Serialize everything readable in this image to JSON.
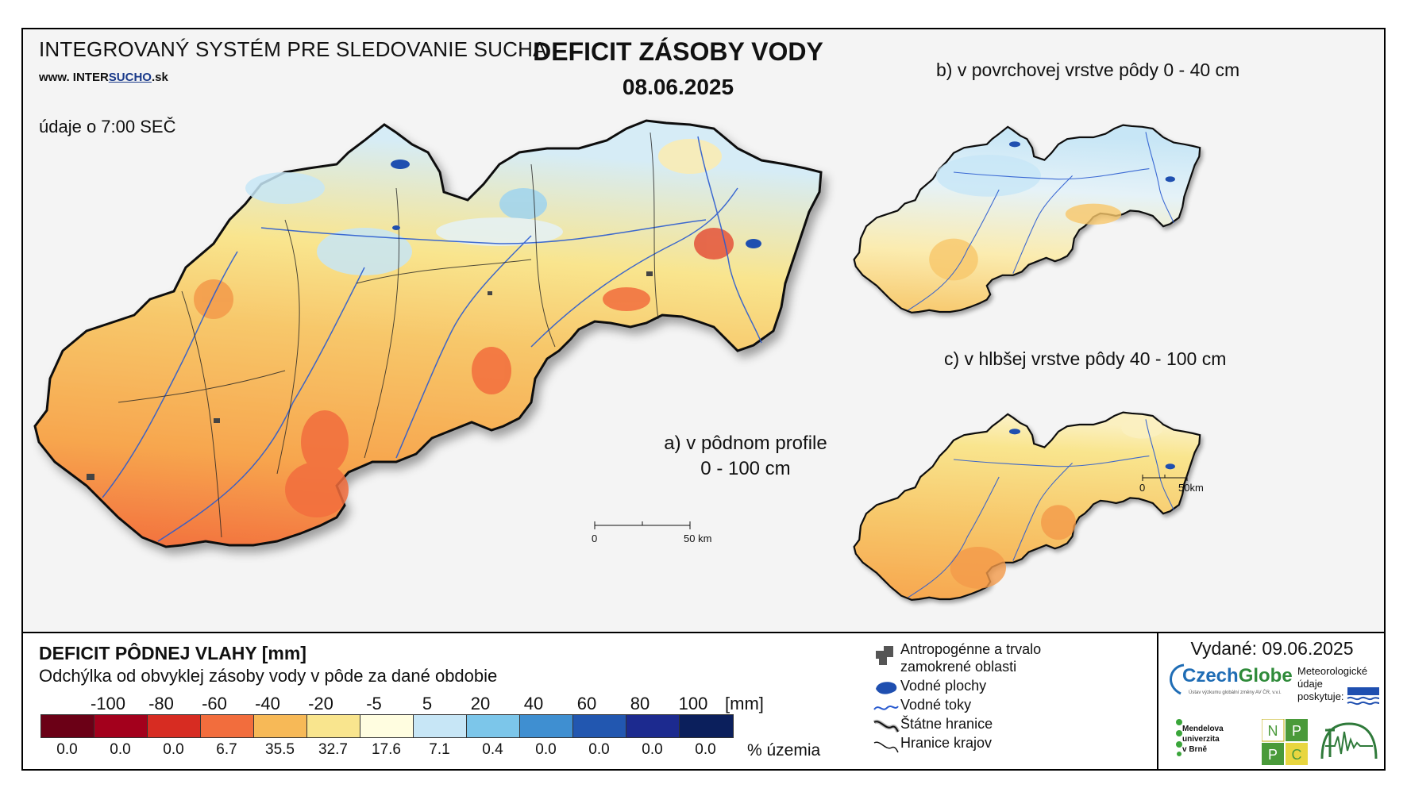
{
  "header": {
    "system_title": "INTEGROVANÝ SYSTÉM PRE SLEDOVANIE SUCHA",
    "website_prefix": "www. INTER",
    "website_highlight": "SUCHO",
    "website_suffix": ".sk",
    "data_time": "údaje o 7:00 SEČ",
    "main_title": "DEFICIT ZÁSOBY VODY",
    "date": "08.06.2025"
  },
  "maps": {
    "a_label_line1": "a) v pôdnom profile",
    "a_label_line2": "0 - 100 cm",
    "b_label": "b) v povrchovej vrstve pôdy 0 - 40 cm",
    "c_label": "c) v hlbšej vrstve pôdy 40 - 100 cm",
    "scale_main": [
      "0",
      "50 km"
    ],
    "scale_small": [
      "0",
      "50km"
    ]
  },
  "legend": {
    "heading": "DEFICIT PÔDNEJ VLAHY [mm]",
    "subheading": "Odchýlka od obvyklej zásoby vody v pôde za dané obdobie",
    "tick_labels": [
      "-100",
      "-80",
      "-60",
      "-40",
      "-20",
      "-5",
      "5",
      "20",
      "40",
      "60",
      "80",
      "100"
    ],
    "unit": "[mm]",
    "colors": [
      "#6b0016",
      "#a3001c",
      "#d72c22",
      "#f26d3d",
      "#f7b957",
      "#f9e58e",
      "#fffde0",
      "#c7e6f6",
      "#7cc6ea",
      "#3f8fd1",
      "#2257b0",
      "#1c2a8f",
      "#0b1f5c"
    ],
    "percent_territory": [
      "0.0",
      "0.0",
      "0.0",
      "6.7",
      "35.5",
      "32.7",
      "17.6",
      "7.1",
      "0.4",
      "0.0",
      "0.0",
      "0.0",
      "0.0"
    ],
    "percent_unit": "% územia"
  },
  "symbols": {
    "items": [
      {
        "label_line1": "Antropogénne a trvalo",
        "label_line2": "zamokrené oblasti",
        "icon": "urban-area-icon"
      },
      {
        "label_line1": "Vodné plochy",
        "label_line2": "",
        "icon": "water-body-icon"
      },
      {
        "label_line1": "Vodné toky",
        "label_line2": "",
        "icon": "river-icon"
      },
      {
        "label_line1": "Štátne hranice",
        "label_line2": "",
        "icon": "state-border-icon"
      },
      {
        "label_line1": "Hranice krajov",
        "label_line2": "",
        "icon": "region-border-icon"
      }
    ]
  },
  "issued": {
    "text": "Vydané: 09.06.2025",
    "czechglobe_a": "Czech",
    "czechglobe_b": "Globe",
    "czechglobe_sub": "Ústav výzkumu globální změny AV ČR, v.v.i.",
    "meteo_line1": "Meteorologické",
    "meteo_line2": "údaje",
    "meteo_line3": "poskytuje:",
    "mendel_line1": "Mendelova",
    "mendel_line2": "univerzita",
    "mendel_line3": "v Brně",
    "nppc_letters": [
      "N",
      "P",
      "P",
      "C"
    ]
  }
}
